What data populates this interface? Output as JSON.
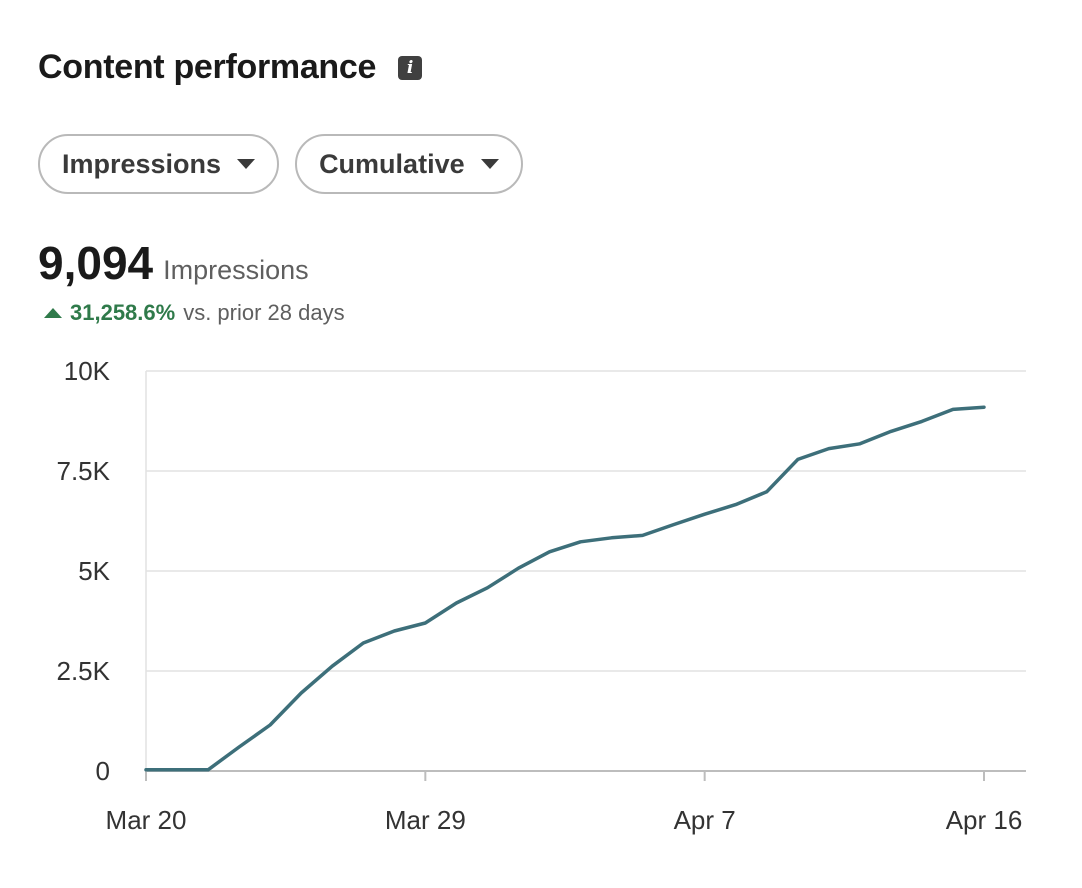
{
  "header": {
    "title": "Content performance",
    "info_icon": "info-icon"
  },
  "filters": {
    "metric": "Impressions",
    "mode": "Cumulative"
  },
  "summary": {
    "value": "9,094",
    "unit": "Impressions",
    "change": "31,258.6%",
    "change_context": "vs. prior 28 days",
    "change_color": "#2f7a4a"
  },
  "chart_data": {
    "type": "line",
    "title": "",
    "xlabel": "",
    "ylabel": "",
    "ylim": [
      0,
      10000
    ],
    "yticks": [
      0,
      2500,
      5000,
      7500,
      10000
    ],
    "ytick_labels": [
      "0",
      "2.5K",
      "5K",
      "7.5K",
      "10K"
    ],
    "xticks": [
      "Mar 20",
      "Mar 29",
      "Apr 7",
      "Apr 16"
    ],
    "grid": true,
    "line_color": "#3d6f7a",
    "series": [
      {
        "x": [
          "Mar 20",
          "Mar 21",
          "Mar 22",
          "Mar 23",
          "Mar 24",
          "Mar 25",
          "Mar 26",
          "Mar 27",
          "Mar 28",
          "Mar 29",
          "Mar 30",
          "Mar 31",
          "Apr 1",
          "Apr 2",
          "Apr 3",
          "Apr 4",
          "Apr 5",
          "Apr 6",
          "Apr 7",
          "Apr 8",
          "Apr 9",
          "Apr 10",
          "Apr 11",
          "Apr 12",
          "Apr 13",
          "Apr 14",
          "Apr 15",
          "Apr 16"
        ],
        "values": [
          29,
          29,
          29,
          600,
          1150,
          1950,
          2620,
          3200,
          3500,
          3700,
          4200,
          4580,
          5070,
          5480,
          5730,
          5830,
          5890,
          6160,
          6420,
          6660,
          6980,
          7790,
          8060,
          8180,
          8490,
          8740,
          9040,
          9094
        ]
      }
    ]
  }
}
